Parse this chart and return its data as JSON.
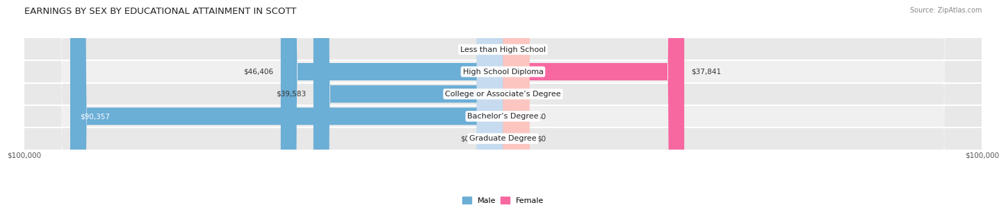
{
  "title": "EARNINGS BY SEX BY EDUCATIONAL ATTAINMENT IN SCOTT",
  "source": "Source: ZipAtlas.com",
  "categories": [
    "Less than High School",
    "High School Diploma",
    "College or Associate’s Degree",
    "Bachelor’s Degree",
    "Graduate Degree"
  ],
  "male_values": [
    0,
    46406,
    39583,
    90357,
    0
  ],
  "female_values": [
    0,
    37841,
    0,
    0,
    0
  ],
  "male_color": "#6baed6",
  "female_color": "#f768a1",
  "male_color_light": "#c6dbef",
  "female_color_light": "#fcc5c0",
  "max_value": 100000,
  "stub_value": 5500,
  "bg_row_color": "#e8e8e8",
  "bg_row_color2": "#f0f0f0",
  "title_fontsize": 9.5,
  "axis_label_fontsize": 7.5,
  "bar_label_fontsize": 7.5,
  "category_fontsize": 8.0,
  "legend_fontsize": 8,
  "xlabel_left": "$100,000",
  "xlabel_right": "$100,000"
}
